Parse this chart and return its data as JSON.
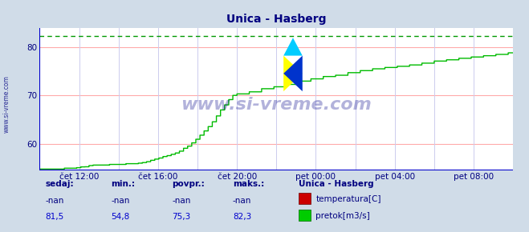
{
  "title": "Unica - Hasberg",
  "title_color": "#000080",
  "bg_color": "#d0dce8",
  "plot_bg_color": "#ffffff",
  "grid_color_h": "#ffaaaa",
  "grid_color_v": "#ccccee",
  "x_tick_labels": [
    "čet 12:00",
    "čet 16:00",
    "čet 20:00",
    "pet 00:00",
    "pet 04:00",
    "pet 08:00"
  ],
  "x_tick_positions": [
    48,
    144,
    240,
    336,
    432,
    528
  ],
  "y_ticks": [
    60,
    70,
    80
  ],
  "ylim": [
    54.5,
    84.0
  ],
  "n_points": 577,
  "xlim_start": 0,
  "xlim_end": 576,
  "line_color": "#00bb00",
  "max_line_color": "#009900",
  "max_line_value": 82.3,
  "watermark": "www.si-vreme.com",
  "watermark_color": "#000088",
  "watermark_alpha": 0.3,
  "label_color": "#000080",
  "value_color": "#0000cc",
  "sedaj_label": "sedaj:",
  "min_label": "min.:",
  "povpr_label": "povpr.:",
  "maks_label": "maks.:",
  "station_label": "Unica - Hasberg",
  "row1": [
    "-nan",
    "-nan",
    "-nan",
    "-nan"
  ],
  "row2": [
    "81,5",
    "54,8",
    "75,3",
    "82,3"
  ],
  "legend_temp_label": "temperatura[C]",
  "legend_flow_label": "pretok[m3/s]",
  "temp_color": "#cc0000",
  "flow_color": "#00cc00",
  "axis_color": "#0000cc",
  "axis_arrow_color": "#cc0000",
  "sidebar_text": "www.si-vreme.com",
  "sidebar_color": "#000080",
  "icon_yellow": "#ffff00",
  "icon_blue": "#0033cc",
  "icon_cyan": "#00ccff"
}
